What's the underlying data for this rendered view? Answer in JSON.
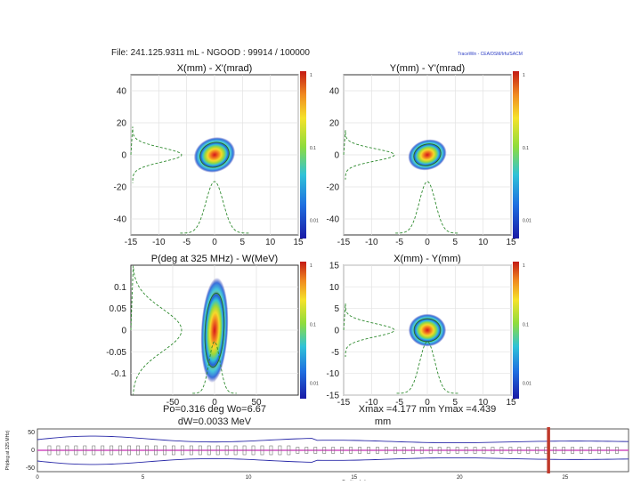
{
  "header": {
    "file_line": "File: 241.125.9311 mL - NGOOD : 99914 / 100000",
    "software": "TraceWin - CEA/DSM/Irfu/SACM"
  },
  "chart_data": [
    {
      "id": "xxp",
      "type": "heatmap",
      "title": "X(mm) - X'(mrad)",
      "xlim": [
        -15,
        15
      ],
      "ylim": [
        -50,
        50
      ],
      "xticks": [
        -15,
        -10,
        -5,
        0,
        5,
        10,
        15
      ],
      "yticks": [
        -40,
        -20,
        0,
        20,
        40
      ],
      "colorbar_ticks": [
        "1",
        "0.1",
        "0.01"
      ],
      "core": {
        "cx": 0,
        "cy": 0,
        "rx": 2.8,
        "ry": 8,
        "tilt": -0.35
      },
      "proj_y_center": 0,
      "proj_x_center": 0
    },
    {
      "id": "yyp",
      "type": "heatmap",
      "title": "Y(mm) - Y'(mrad)",
      "xlim": [
        -15,
        15
      ],
      "ylim": [
        -50,
        50
      ],
      "xticks": [
        -15,
        -10,
        -5,
        0,
        5,
        10,
        15
      ],
      "yticks": [
        -40,
        -20,
        0,
        20,
        40
      ],
      "colorbar_ticks": [
        "1",
        "0.1",
        "0.01"
      ],
      "core": {
        "cx": 0,
        "cy": 0,
        "rx": 2.6,
        "ry": 7,
        "tilt": -0.3
      },
      "proj_y_center": 0,
      "proj_x_center": 0
    },
    {
      "id": "pw",
      "type": "heatmap",
      "title": "P(deg at 325 MHz) - W(MeV)",
      "xlim": [
        -100,
        100
      ],
      "ylim": [
        -0.15,
        0.15
      ],
      "xticks": [
        -50,
        0,
        50
      ],
      "yticks": [
        -0.1,
        -0.05,
        0,
        0.05,
        0.1
      ],
      "colorbar_ticks": [
        "1",
        "0.1",
        "0.01"
      ],
      "core": {
        "cx": 0,
        "cy": 0,
        "rx": 12,
        "ry": 0.09,
        "tilt": 0.05
      },
      "proj_y_center": 0,
      "proj_x_center": 0,
      "footer": [
        "Po=0.316 deg  Wo=6.67",
        "dW=0.0033 MeV"
      ]
    },
    {
      "id": "xy",
      "type": "heatmap",
      "title": "X(mm) - Y(mm)",
      "xlim": [
        -15,
        15
      ],
      "ylim": [
        -15,
        15
      ],
      "xticks": [
        -15,
        -10,
        -5,
        0,
        5,
        10,
        15
      ],
      "yticks": [
        -15,
        -10,
        -5,
        0,
        5,
        10,
        15
      ],
      "colorbar_ticks": [
        "1",
        "0.1",
        "0.01"
      ],
      "core": {
        "cx": 0,
        "cy": 0,
        "rx": 2.5,
        "ry": 2.8,
        "tilt": 0
      },
      "proj_y_center": 0,
      "proj_x_center": 0,
      "footer": [
        "Xmax =4.177 mm  Ymax =4.439",
        "mm"
      ]
    },
    {
      "id": "envelope",
      "type": "line",
      "ylabel": "Ph(deg at 325 MHz)",
      "xlabel": "Position (m)",
      "ylim": [
        -50,
        50
      ],
      "yticks": [
        50,
        0,
        -50
      ],
      "xlim": [
        0,
        28
      ],
      "xticks": [
        0,
        5,
        10,
        15,
        20,
        25
      ],
      "marker_x": 24.2
    }
  ]
}
